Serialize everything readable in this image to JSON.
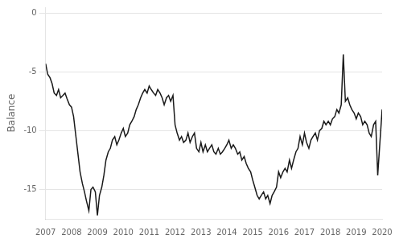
{
  "chart_data": {
    "type": "line",
    "ylabel": "Balance",
    "xlim": [
      2007.0,
      2020.0
    ],
    "ylim": [
      -17.5,
      0.5
    ],
    "yticks": [
      0,
      -5,
      -10,
      -15
    ],
    "xticks": [
      2007,
      2008,
      2009,
      2010,
      2011,
      2012,
      2013,
      2014,
      2015,
      2016,
      2017,
      2018,
      2019,
      2020
    ],
    "grid": "y",
    "color": "#1a1a1a",
    "x": [
      2007.0,
      2007.08,
      2007.17,
      2007.25,
      2007.33,
      2007.42,
      2007.5,
      2007.58,
      2007.67,
      2007.75,
      2007.83,
      2007.92,
      2008.0,
      2008.08,
      2008.17,
      2008.25,
      2008.33,
      2008.42,
      2008.5,
      2008.58,
      2008.67,
      2008.75,
      2008.83,
      2008.92,
      2009.0,
      2009.08,
      2009.17,
      2009.25,
      2009.33,
      2009.42,
      2009.5,
      2009.58,
      2009.67,
      2009.75,
      2009.83,
      2009.92,
      2010.0,
      2010.08,
      2010.17,
      2010.25,
      2010.33,
      2010.42,
      2010.5,
      2010.58,
      2010.67,
      2010.75,
      2010.83,
      2010.92,
      2011.0,
      2011.08,
      2011.17,
      2011.25,
      2011.33,
      2011.42,
      2011.5,
      2011.58,
      2011.67,
      2011.75,
      2011.83,
      2011.92,
      2012.0,
      2012.08,
      2012.17,
      2012.25,
      2012.33,
      2012.42,
      2012.5,
      2012.58,
      2012.67,
      2012.75,
      2012.83,
      2012.92,
      2013.0,
      2013.08,
      2013.17,
      2013.25,
      2013.33,
      2013.42,
      2013.5,
      2013.58,
      2013.67,
      2013.75,
      2013.83,
      2013.92,
      2014.0,
      2014.08,
      2014.17,
      2014.25,
      2014.33,
      2014.42,
      2014.5,
      2014.58,
      2014.67,
      2014.75,
      2014.83,
      2014.92,
      2015.0,
      2015.08,
      2015.17,
      2015.25,
      2015.33,
      2015.42,
      2015.5,
      2015.58,
      2015.67,
      2015.75,
      2015.83,
      2015.92,
      2016.0,
      2016.08,
      2016.17,
      2016.25,
      2016.33,
      2016.42,
      2016.5,
      2016.58,
      2016.67,
      2016.75,
      2016.83,
      2016.92,
      2017.0,
      2017.08,
      2017.17,
      2017.25,
      2017.33,
      2017.42,
      2017.5,
      2017.58,
      2017.67,
      2017.75,
      2017.83,
      2017.92,
      2018.0,
      2018.08,
      2018.17,
      2018.25,
      2018.33,
      2018.42,
      2018.5,
      2018.58,
      2018.67,
      2018.75,
      2018.83,
      2018.92,
      2019.0,
      2019.08,
      2019.17,
      2019.25,
      2019.33,
      2019.42,
      2019.5,
      2019.58,
      2019.67,
      2019.75,
      2019.83,
      2019.92,
      2020.0
    ],
    "values": [
      -4.3,
      -5.2,
      -5.5,
      -6.0,
      -6.8,
      -7.0,
      -6.5,
      -7.2,
      -7.0,
      -6.8,
      -7.3,
      -7.8,
      -8.0,
      -8.8,
      -10.5,
      -12.0,
      -13.5,
      -14.5,
      -15.2,
      -16.0,
      -16.8,
      -15.0,
      -14.8,
      -15.2,
      -17.2,
      -15.5,
      -14.8,
      -13.8,
      -12.5,
      -11.8,
      -11.5,
      -10.8,
      -10.5,
      -11.2,
      -10.8,
      -10.2,
      -9.8,
      -10.5,
      -10.2,
      -9.5,
      -9.2,
      -8.8,
      -8.2,
      -7.8,
      -7.2,
      -6.8,
      -6.5,
      -6.8,
      -6.2,
      -6.5,
      -6.8,
      -7.0,
      -6.5,
      -6.8,
      -7.2,
      -7.8,
      -7.2,
      -7.0,
      -7.5,
      -7.0,
      -9.5,
      -10.2,
      -10.8,
      -10.5,
      -11.0,
      -10.8,
      -10.2,
      -11.0,
      -10.5,
      -10.2,
      -11.5,
      -11.8,
      -11.0,
      -11.8,
      -11.2,
      -11.8,
      -11.5,
      -11.2,
      -11.8,
      -12.0,
      -11.5,
      -12.0,
      -11.8,
      -11.5,
      -11.2,
      -10.8,
      -11.5,
      -11.2,
      -11.5,
      -12.0,
      -11.8,
      -12.5,
      -12.2,
      -12.8,
      -13.2,
      -13.5,
      -14.2,
      -14.8,
      -15.5,
      -15.8,
      -15.5,
      -15.2,
      -15.8,
      -15.5,
      -16.2,
      -15.5,
      -15.2,
      -14.8,
      -13.5,
      -14.0,
      -13.5,
      -13.2,
      -13.5,
      -12.5,
      -13.2,
      -12.5,
      -11.8,
      -11.5,
      -10.5,
      -11.2,
      -10.2,
      -11.0,
      -11.5,
      -10.8,
      -10.5,
      -10.2,
      -10.8,
      -10.0,
      -9.8,
      -9.2,
      -9.5,
      -9.2,
      -9.5,
      -9.0,
      -8.8,
      -8.2,
      -8.5,
      -7.8,
      -3.5,
      -7.5,
      -7.2,
      -7.8,
      -8.2,
      -8.5,
      -9.0,
      -8.5,
      -8.8,
      -9.5,
      -9.2,
      -9.5,
      -10.2,
      -10.5,
      -9.5,
      -9.2,
      -13.8,
      -10.8,
      -8.2
    ]
  }
}
